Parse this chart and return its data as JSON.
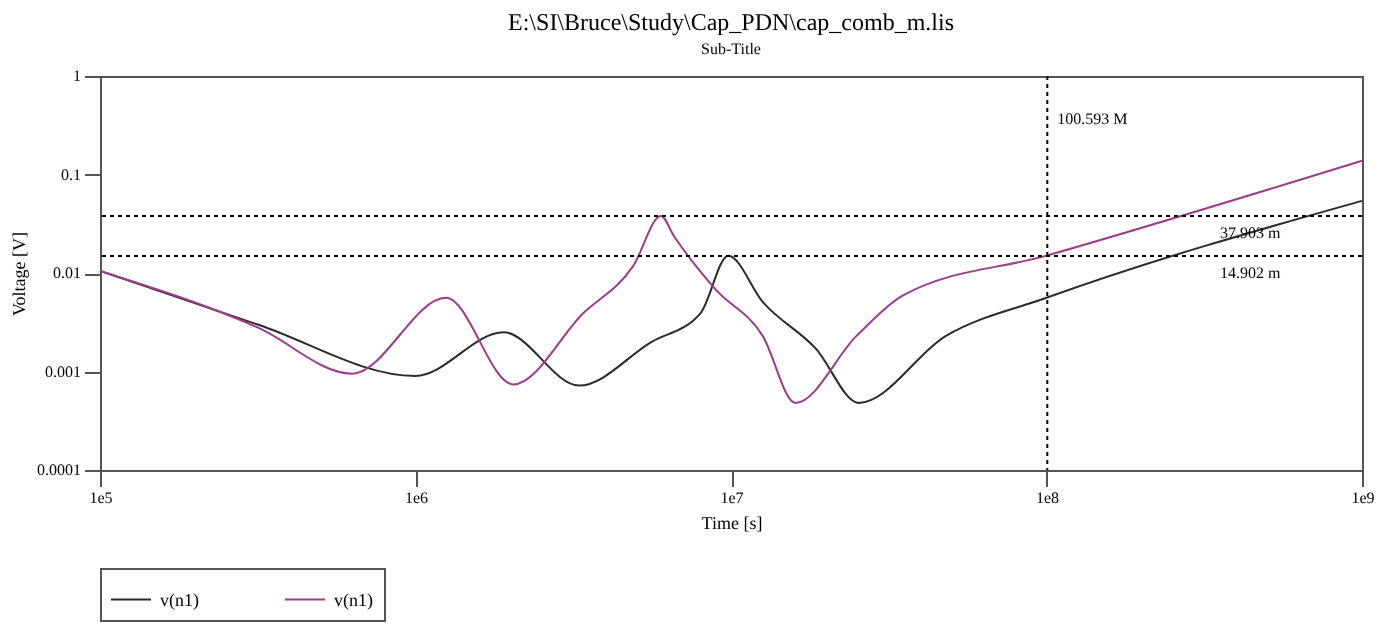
{
  "chart_data": {
    "type": "line",
    "title": "E:\\SI\\Bruce\\Study\\Cap_PDN\\cap_comb_m.lis",
    "subtitle": "Sub-Title",
    "xlabel": "Time [s]",
    "ylabel": "Voltage [V]",
    "log": "xy",
    "grid": false,
    "legend": "bottom",
    "marker": "none",
    "line_style": "solid",
    "xlim": [
      100000,
      1000000000
    ],
    "ylim": [
      0.0001,
      1
    ],
    "xticks": [
      {
        "value": 100000,
        "label": "1e5"
      },
      {
        "value": 1000000,
        "label": "1e6"
      },
      {
        "value": 10000000,
        "label": "1e7"
      },
      {
        "value": 100000000,
        "label": "1e8"
      },
      {
        "value": 1000000000,
        "label": "1e9"
      }
    ],
    "yticks": [
      0.0001,
      0.001,
      0.01,
      0.1,
      1
    ],
    "series": [
      {
        "name": "v(n1)",
        "color": "#2b2b2b",
        "x": [
          100000,
          316000,
          1000000,
          1900000,
          3300000,
          5600000,
          8000000,
          9800000,
          12600000,
          18600000,
          25400000,
          48000000,
          100000000,
          1000000000
        ],
        "values": [
          0.0105,
          0.003,
          0.0009,
          0.0025,
          0.00072,
          0.002,
          0.0039,
          0.015,
          0.0051,
          0.0017,
          0.00048,
          0.0023,
          0.0056,
          0.054
        ]
      },
      {
        "name": "v(n1)",
        "color": "#9b3d8a",
        "x": [
          100000,
          316000,
          630000,
          1250000,
          2040000,
          3400000,
          4900000,
          6000000,
          6600000,
          8900000,
          12600000,
          16000000,
          25000000,
          35000000,
          100000000,
          1000000000
        ],
        "values": [
          0.0105,
          0.0028,
          0.00095,
          0.0056,
          0.00074,
          0.0039,
          0.0118,
          0.038,
          0.0236,
          0.0069,
          0.0023,
          0.00048,
          0.0023,
          0.0059,
          0.015,
          0.138
        ]
      }
    ],
    "ref_lines": [
      {
        "axis": "x",
        "value": 100593000,
        "label": "100.593 M",
        "color": "#000000",
        "line_style": "dotted"
      },
      {
        "axis": "y",
        "value": 0.037903,
        "label": "37.903 m",
        "color": "#000000",
        "line_style": "dotted"
      },
      {
        "axis": "y",
        "value": 0.014902,
        "label": "14.902 m",
        "color": "#000000",
        "line_style": "dotted"
      }
    ]
  }
}
